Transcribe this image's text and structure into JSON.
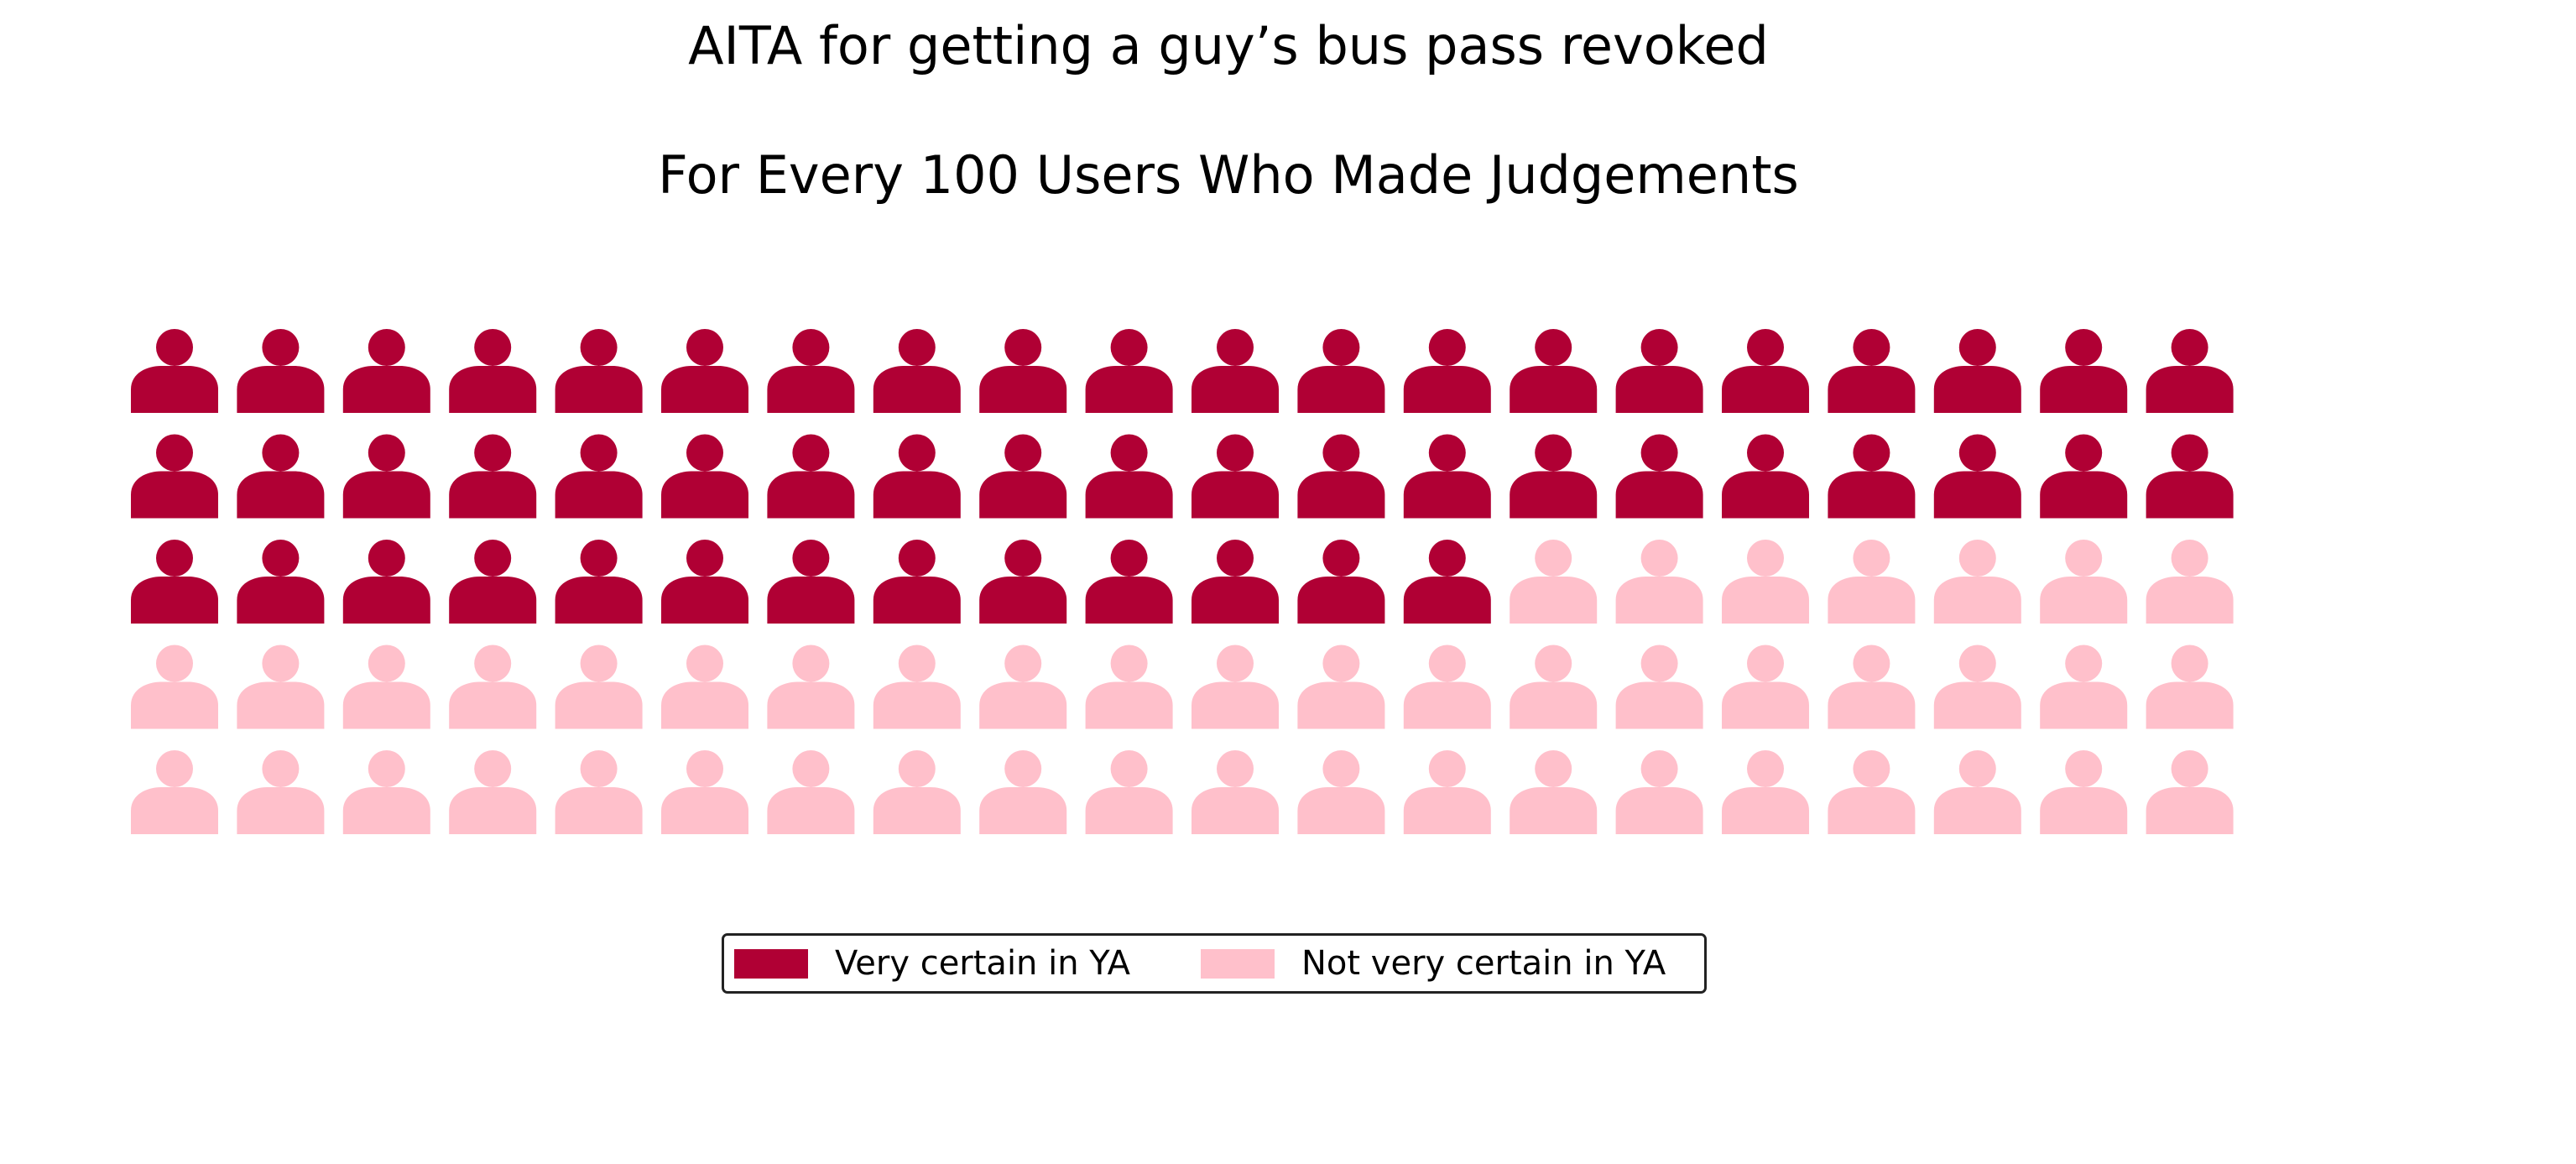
{
  "chart_data": {
    "type": "waffle",
    "title": "AITA for getting a guy’s bus pass revoked",
    "subtitle": "For Every 100 Users Who Made Judgements",
    "rows": 5,
    "columns": 20,
    "total": 100,
    "icon": "person-icon",
    "fill_order": "row-major, top-left first",
    "series": [
      {
        "name": "Very certain in YA",
        "value": 53,
        "color": "#b00034"
      },
      {
        "name": "Not very certain in YA",
        "value": 47,
        "color": "#ffc0cb"
      }
    ],
    "legend_position": "bottom-center"
  }
}
